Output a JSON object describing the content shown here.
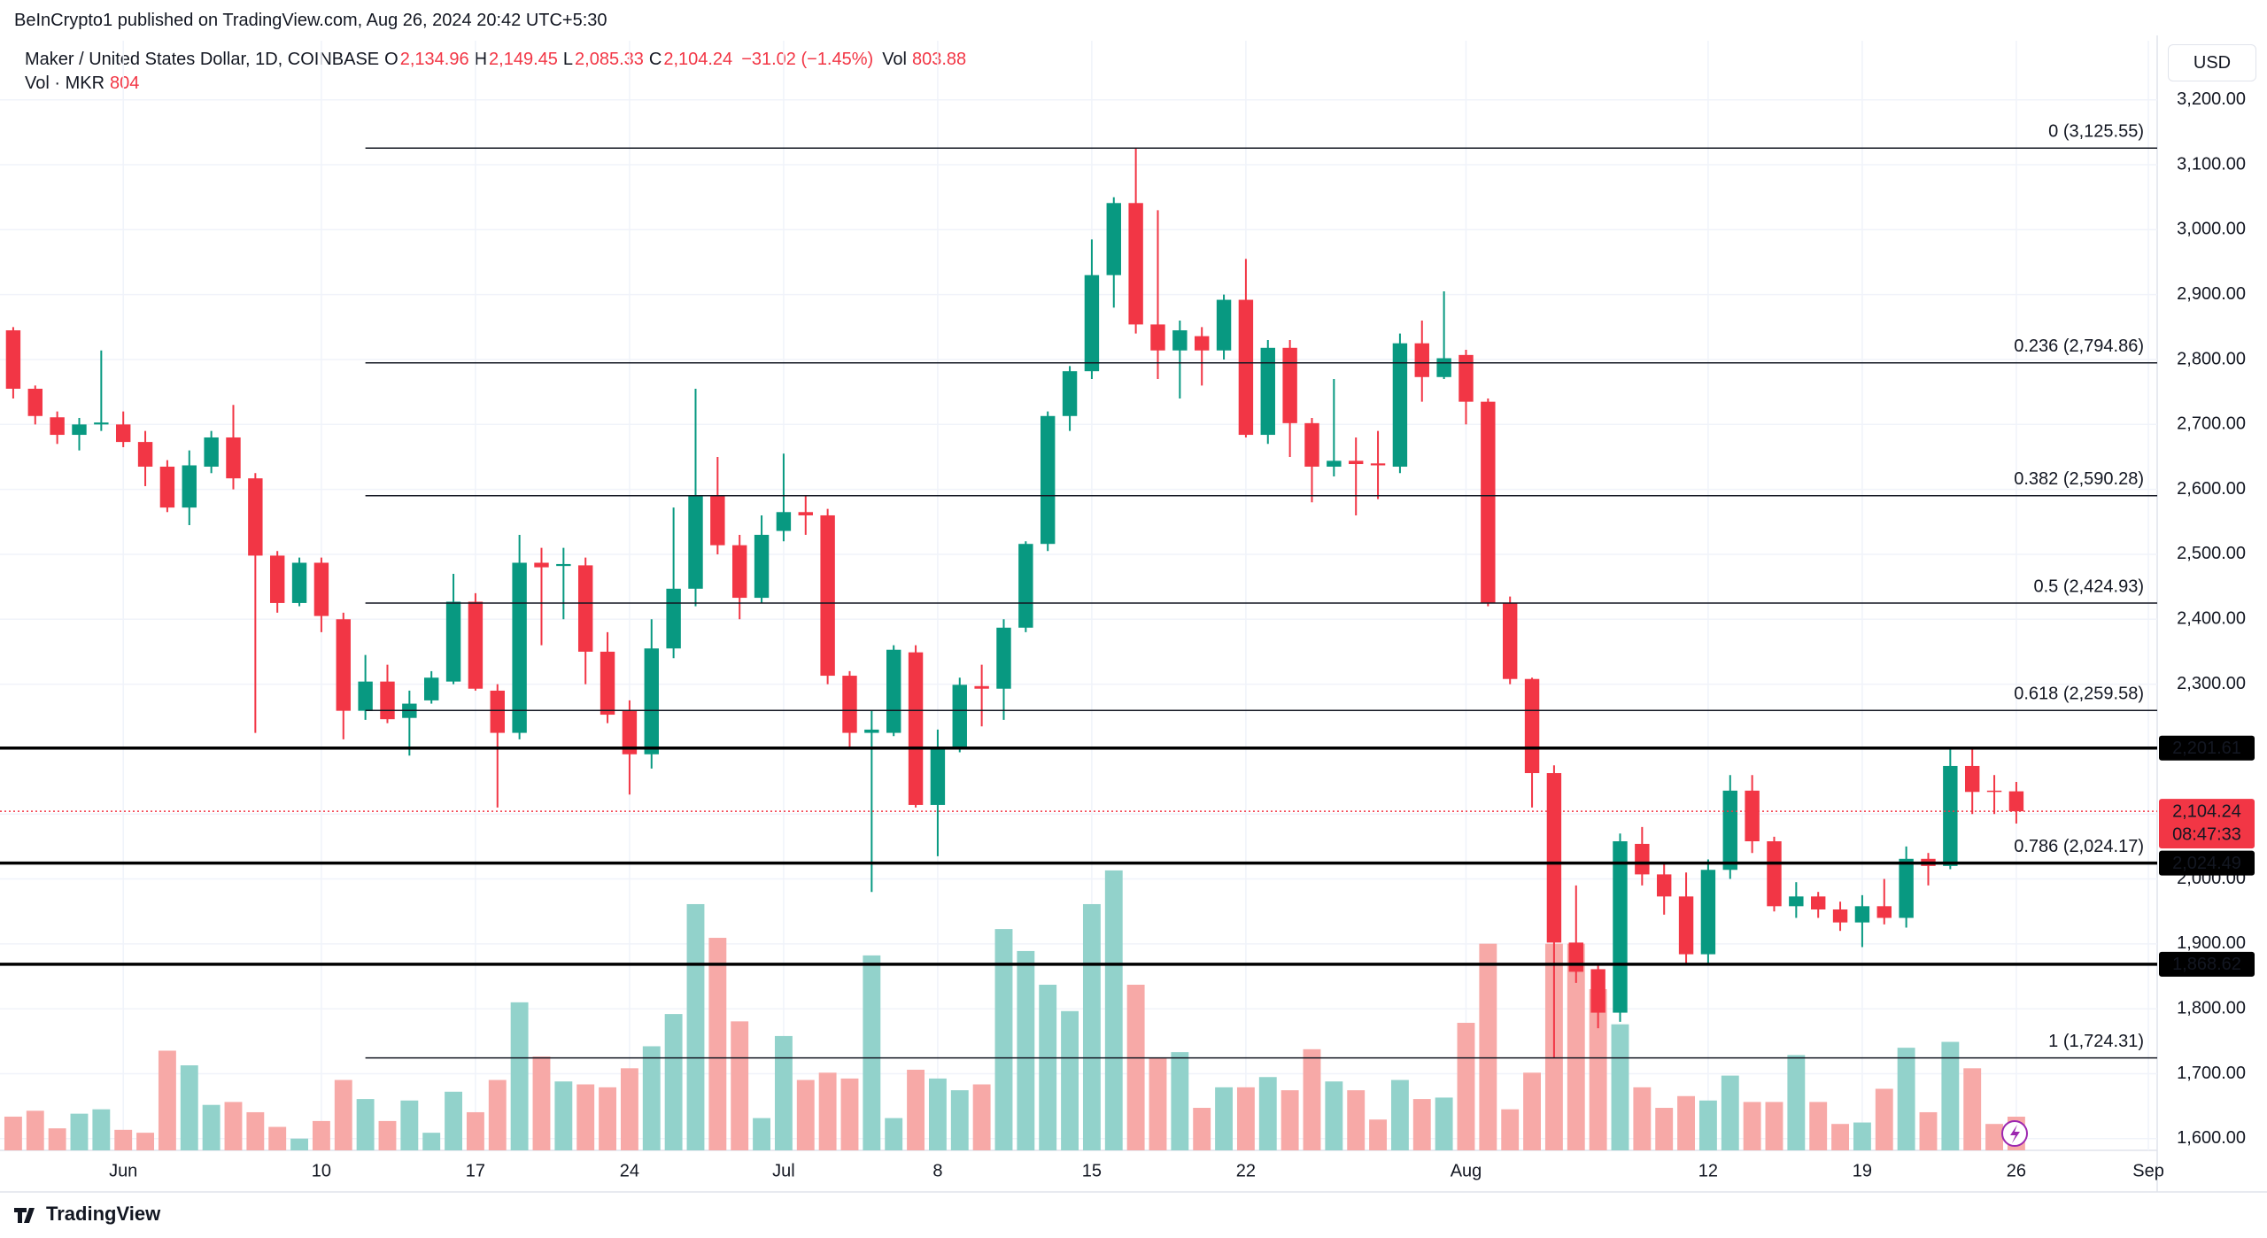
{
  "chart_data": {
    "type": "candlestick",
    "published": "BeInCrypto1 published on TradingView.com, Aug 26, 2024 20:42 UTC+5:30",
    "title": "Maker / United States Dollar, 1D, COINBASE",
    "currency": "USD",
    "brand": "TradingView",
    "legend": {
      "ohlc": [
        {
          "key": "O",
          "label": "2,134.96"
        },
        {
          "key": "H",
          "label": "2,149.45"
        },
        {
          "key": "L",
          "label": "2,085.33"
        },
        {
          "key": "C",
          "label": "2,104.24"
        }
      ],
      "change": "−31.02 (−1.45%)",
      "vol_key": "Vol",
      "vol_label": "803.88",
      "vol_name": "Vol · MKR",
      "vol_value_label": "804"
    },
    "open": [
      2845,
      2755,
      2711,
      2684,
      2700,
      2700,
      2673,
      2635,
      2572,
      2635,
      2680,
      2617,
      2498,
      2425,
      2487,
      2400,
      2259,
      2304,
      2248,
      2275,
      2304,
      2427,
      2290,
      2225,
      2487,
      2482,
      2483,
      2350,
      2259,
      2192,
      2355,
      2447,
      2590,
      2514,
      2433,
      2536,
      2565,
      2560,
      2313,
      2225,
      2225,
      2349,
      2114,
      2203,
      2297,
      2293,
      2387,
      2516,
      2713,
      2782,
      2930,
      3041,
      2854,
      2814,
      2836,
      2814,
      2892,
      2684,
      2818,
      2702,
      2635,
      2644,
      2640,
      2635,
      2825,
      2773,
      2807,
      2735,
      2425,
      2308,
      2163,
      1902,
      1861,
      1794,
      2054,
      2007,
      1973,
      1884,
      2014,
      2136,
      2058,
      1958,
      1973,
      1953,
      1933,
      1958,
      1940,
      2031,
      2020,
      2174,
      2136,
      2134.96
    ],
    "high": [
      2850,
      2760,
      2720,
      2710,
      2814,
      2720,
      2690,
      2645,
      2660,
      2690,
      2730,
      2625,
      2505,
      2495,
      2495,
      2410,
      2345,
      2330,
      2290,
      2320,
      2470,
      2440,
      2300,
      2530,
      2510,
      2510,
      2495,
      2380,
      2275,
      2400,
      2572,
      2755,
      2650,
      2530,
      2560,
      2655,
      2590,
      2570,
      2320,
      2260,
      2360,
      2360,
      2230,
      2310,
      2330,
      2400,
      2520,
      2720,
      2790,
      2985,
      3050,
      3125.55,
      3030,
      2860,
      2850,
      2900,
      2955,
      2830,
      2830,
      2710,
      2770,
      2680,
      2690,
      2840,
      2860,
      2905,
      2815,
      2740,
      2435,
      2310,
      2175,
      1990,
      1870,
      2070,
      2080,
      2025,
      2010,
      2030,
      2160,
      2160,
      2065,
      1995,
      1980,
      1965,
      1975,
      2000,
      2050,
      2040,
      2200,
      2202,
      2160,
      2149.45
    ],
    "low": [
      2740,
      2700,
      2670,
      2660,
      2690,
      2665,
      2605,
      2565,
      2545,
      2625,
      2600,
      2225,
      2410,
      2420,
      2380,
      2215,
      2245,
      2240,
      2190,
      2270,
      2300,
      2290,
      2110,
      2215,
      2360,
      2400,
      2300,
      2240,
      2130,
      2170,
      2340,
      2420,
      2500,
      2400,
      2425,
      2520,
      2530,
      2300,
      2200,
      1980,
      2220,
      2110,
      2035,
      2195,
      2235,
      2245,
      2380,
      2505,
      2690,
      2770,
      2880,
      2840,
      2770,
      2740,
      2760,
      2800,
      2680,
      2670,
      2650,
      2580,
      2620,
      2560,
      2585,
      2625,
      2735,
      2770,
      2700,
      2420,
      2300,
      2110,
      1724.31,
      1840,
      1770,
      1780,
      1990,
      1945,
      1870,
      1870,
      2000,
      2040,
      1950,
      1940,
      1940,
      1920,
      1895,
      1930,
      1925,
      1990,
      2015,
      2100,
      2100,
      2085.33
    ],
    "close": [
      2755,
      2713,
      2684,
      2700,
      2703,
      2673,
      2635,
      2572,
      2637,
      2680,
      2617,
      2498,
      2425,
      2487,
      2405,
      2259,
      2304,
      2246,
      2270,
      2310,
      2427,
      2293,
      2225,
      2487,
      2480,
      2485,
      2350,
      2253,
      2192,
      2355,
      2447,
      2590,
      2514,
      2433,
      2530,
      2565,
      2560,
      2313,
      2225,
      2230,
      2353,
      2114,
      2203,
      2299,
      2293,
      2387,
      2516,
      2713,
      2782,
      2930,
      3041,
      2854,
      2814,
      2845,
      2814,
      2892,
      2684,
      2818,
      2702,
      2635,
      2644,
      2639,
      2637,
      2825,
      2773,
      2802,
      2735,
      2425,
      2308,
      2163,
      1902,
      1857,
      1794,
      2058,
      2007,
      1973,
      1884,
      2014,
      2136,
      2058,
      1958,
      1973,
      1953,
      1933,
      1958,
      1940,
      2031,
      2020,
      2174,
      2134,
      2135.26,
      2104.24
    ],
    "volume": [
      805,
      945,
      525,
      875,
      980,
      490,
      420,
      2380,
      2030,
      1085,
      1155,
      910,
      560,
      280,
      700,
      1680,
      1225,
      700,
      1190,
      420,
      1400,
      910,
      1680,
      3535,
      2240,
      1645,
      1575,
      1505,
      1960,
      2485,
      3255,
      5880,
      5075,
      3080,
      770,
      2730,
      1680,
      1855,
      1715,
      4655,
      770,
      1925,
      1715,
      1435,
      1575,
      5285,
      4760,
      3955,
      3325,
      5880,
      6685,
      3955,
      2205,
      2345,
      1015,
      1505,
      1505,
      1750,
      1435,
      2415,
      1645,
      1435,
      735,
      1680,
      1225,
      1260,
      3045,
      4935,
      980,
      1855,
      4935,
      4935,
      3850,
      3010,
      1505,
      1015,
      1295,
      1190,
      1785,
      1155,
      1155,
      2275,
      1155,
      630,
      665,
      1470,
      2450,
      910,
      2590,
      1960,
      630,
      803.88
    ],
    "xlim": [
      -0.6,
      97.4
    ],
    "xticks": [
      {
        "value": 5,
        "label": "Jun"
      },
      {
        "value": 14,
        "label": "10"
      },
      {
        "value": 21,
        "label": "17"
      },
      {
        "value": 28,
        "label": "24"
      },
      {
        "value": 35,
        "label": "Jul"
      },
      {
        "value": 42,
        "label": "8"
      },
      {
        "value": 49,
        "label": "15"
      },
      {
        "value": 56,
        "label": "22"
      },
      {
        "value": 66,
        "label": "Aug"
      },
      {
        "value": 77,
        "label": "12"
      },
      {
        "value": 84,
        "label": "19"
      },
      {
        "value": 91,
        "label": "26"
      },
      {
        "value": 97,
        "label": "Sep"
      }
    ],
    "ylim": [
      1582,
      3291
    ],
    "yticks": [
      {
        "value": 1600,
        "label": "1,600.00"
      },
      {
        "value": 1700,
        "label": "1,700.00"
      },
      {
        "value": 1800,
        "label": "1,800.00"
      },
      {
        "value": 1900,
        "label": "1,900.00"
      },
      {
        "value": 2000,
        "label": "2,000.00"
      },
      {
        "value": 2100,
        "label": "2,100.00"
      },
      {
        "value": 2200,
        "label": "2,200.00"
      },
      {
        "value": 2300,
        "label": "2,300.00"
      },
      {
        "value": 2400,
        "label": "2,400.00"
      },
      {
        "value": 2500,
        "label": "2,500.00"
      },
      {
        "value": 2600,
        "label": "2,600.00"
      },
      {
        "value": 2700,
        "label": "2,700.00"
      },
      {
        "value": 2800,
        "label": "2,800.00"
      },
      {
        "value": 2900,
        "label": "2,900.00"
      },
      {
        "value": 3000,
        "label": "3,000.00"
      },
      {
        "value": 3100,
        "label": "3,100.00"
      },
      {
        "value": 3200,
        "label": "3,200.00"
      }
    ],
    "vol_ylim": [
      0,
      26500
    ],
    "grid": true,
    "colors": {
      "up": "#089981",
      "down": "#f23645",
      "vol_up": "#92d2cb",
      "vol_down": "#f7a9a7"
    },
    "fib": {
      "x_start": 16,
      "levels": [
        {
          "value": 3125.55,
          "label": "0 (3,125.55)"
        },
        {
          "value": 2794.86,
          "label": "0.236 (2,794.86)"
        },
        {
          "value": 2590.28,
          "label": "0.382 (2,590.28)"
        },
        {
          "value": 2424.93,
          "label": "0.5 (2,424.93)"
        },
        {
          "value": 2259.58,
          "label": "0.618 (2,259.58)"
        },
        {
          "value": 2024.17,
          "label": "0.786 (2,024.17)"
        },
        {
          "value": 1724.31,
          "label": "1 (1,724.31)"
        }
      ]
    },
    "levels": [
      {
        "value": 2201.61,
        "label": "2,201.61"
      },
      {
        "value": 2024.49,
        "label": "2,024.49"
      },
      {
        "value": 1868.62,
        "label": "1,868.62"
      }
    ],
    "last_price": {
      "value": 2104.24,
      "label": "2,104.24",
      "countdown": "08:47:33"
    }
  }
}
